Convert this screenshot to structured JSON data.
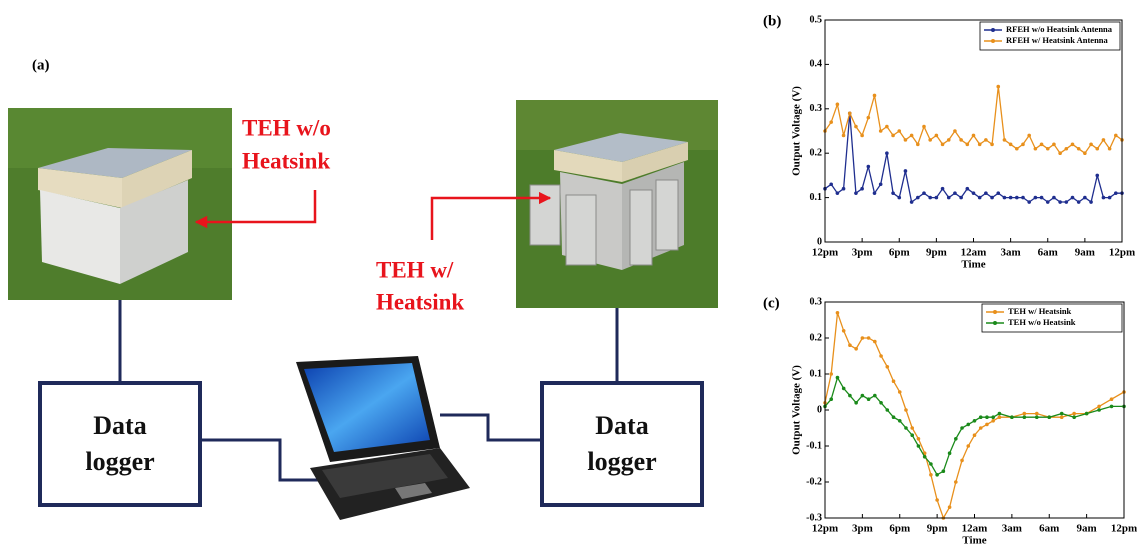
{
  "diagram": {
    "panel": "(a)",
    "teh_without": [
      "TEH w/o",
      "Heatsink"
    ],
    "teh_with": [
      "TEH w/",
      "Heatsink"
    ],
    "loggers": [
      [
        "Data",
        "logger"
      ],
      [
        "Data",
        "logger"
      ]
    ]
  },
  "chart_data": [
    {
      "type": "line",
      "panel": "(b)",
      "xlabel": "Time",
      "ylabel": "Output Voltage (V)",
      "legend": "upper right",
      "markers": true,
      "xlim": [
        0,
        24
      ],
      "xticks": [
        {
          "value": 0,
          "label": "12pm"
        },
        {
          "value": 3,
          "label": "3pm"
        },
        {
          "value": 6,
          "label": "6pm"
        },
        {
          "value": 9,
          "label": "9pm"
        },
        {
          "value": 12,
          "label": "12am"
        },
        {
          "value": 15,
          "label": "3am"
        },
        {
          "value": 18,
          "label": "6am"
        },
        {
          "value": 21,
          "label": "9am"
        },
        {
          "value": 24,
          "label": "12pm"
        }
      ],
      "ylim": [
        0,
        0.5
      ],
      "yticks": [
        0,
        0.1,
        0.2,
        0.3,
        0.4,
        0.5
      ],
      "x": [
        0,
        0.5,
        1,
        1.5,
        2,
        2.5,
        3,
        3.5,
        4,
        4.5,
        5,
        5.5,
        6,
        6.5,
        7,
        7.5,
        8,
        8.5,
        9,
        9.5,
        10,
        10.5,
        11,
        11.5,
        12,
        12.5,
        13,
        13.5,
        14,
        14.5,
        15,
        15.5,
        16,
        16.5,
        17,
        17.5,
        18,
        18.5,
        19,
        19.5,
        20,
        20.5,
        21,
        21.5,
        22,
        22.5,
        23,
        23.5,
        24
      ],
      "series": [
        {
          "name": "RFEH w/o Heatsink Antenna",
          "color": "#1f2e8f",
          "values": [
            0.12,
            0.13,
            0.11,
            0.12,
            0.29,
            0.11,
            0.12,
            0.17,
            0.11,
            0.13,
            0.2,
            0.11,
            0.1,
            0.16,
            0.09,
            0.1,
            0.11,
            0.1,
            0.1,
            0.12,
            0.1,
            0.11,
            0.1,
            0.12,
            0.11,
            0.1,
            0.11,
            0.1,
            0.11,
            0.1,
            0.1,
            0.1,
            0.1,
            0.09,
            0.1,
            0.1,
            0.09,
            0.1,
            0.09,
            0.09,
            0.1,
            0.09,
            0.1,
            0.09,
            0.15,
            0.1,
            0.1,
            0.11,
            0.11
          ]
        },
        {
          "name": "RFEH w/ Heatsink Antenna",
          "color": "#e8901c",
          "values": [
            0.25,
            0.27,
            0.31,
            0.24,
            0.29,
            0.26,
            0.24,
            0.28,
            0.33,
            0.25,
            0.26,
            0.24,
            0.25,
            0.23,
            0.24,
            0.22,
            0.26,
            0.23,
            0.24,
            0.22,
            0.23,
            0.25,
            0.23,
            0.22,
            0.24,
            0.22,
            0.23,
            0.22,
            0.35,
            0.23,
            0.22,
            0.21,
            0.22,
            0.24,
            0.21,
            0.22,
            0.21,
            0.22,
            0.2,
            0.21,
            0.22,
            0.21,
            0.2,
            0.22,
            0.21,
            0.23,
            0.21,
            0.24,
            0.23
          ]
        }
      ]
    },
    {
      "type": "line",
      "panel": "(c)",
      "xlabel": "Time",
      "ylabel": "Output Voltage (V)",
      "legend": "upper right",
      "markers": true,
      "xlim": [
        0,
        24
      ],
      "xticks": [
        {
          "value": 0,
          "label": "12pm"
        },
        {
          "value": 3,
          "label": "3pm"
        },
        {
          "value": 6,
          "label": "6pm"
        },
        {
          "value": 9,
          "label": "9pm"
        },
        {
          "value": 12,
          "label": "12am"
        },
        {
          "value": 15,
          "label": "3am"
        },
        {
          "value": 18,
          "label": "6am"
        },
        {
          "value": 21,
          "label": "9am"
        },
        {
          "value": 24,
          "label": "12pm"
        }
      ],
      "ylim": [
        -0.3,
        0.3
      ],
      "yticks": [
        -0.3,
        -0.2,
        -0.1,
        0,
        0.1,
        0.2,
        0.3
      ],
      "x": [
        0,
        0.5,
        1,
        1.5,
        2,
        2.5,
        3,
        3.5,
        4,
        4.5,
        5,
        5.5,
        6,
        6.5,
        7,
        7.5,
        8,
        8.5,
        9,
        9.5,
        10,
        10.5,
        11,
        11.5,
        12,
        12.5,
        13,
        13.5,
        14,
        15,
        16,
        17,
        18,
        19,
        20,
        21,
        22,
        23,
        24
      ],
      "series": [
        {
          "name": "TEH w/ Heatsink",
          "color": "#e8901c",
          "values": [
            0.02,
            0.1,
            0.27,
            0.22,
            0.18,
            0.17,
            0.2,
            0.2,
            0.19,
            0.15,
            0.12,
            0.08,
            0.05,
            0.0,
            -0.05,
            -0.08,
            -0.12,
            -0.18,
            -0.25,
            -0.3,
            -0.27,
            -0.2,
            -0.14,
            -0.1,
            -0.07,
            -0.05,
            -0.04,
            -0.03,
            -0.02,
            -0.02,
            -0.01,
            -0.01,
            -0.02,
            -0.02,
            -0.01,
            -0.01,
            0.01,
            0.03,
            0.05
          ]
        },
        {
          "name": "TEH w/o Heatsink",
          "color": "#1a8a1a",
          "values": [
            0.01,
            0.03,
            0.09,
            0.06,
            0.04,
            0.02,
            0.04,
            0.03,
            0.04,
            0.02,
            0.0,
            -0.02,
            -0.03,
            -0.05,
            -0.07,
            -0.1,
            -0.13,
            -0.15,
            -0.18,
            -0.17,
            -0.12,
            -0.08,
            -0.05,
            -0.04,
            -0.03,
            -0.02,
            -0.02,
            -0.02,
            -0.01,
            -0.02,
            -0.02,
            -0.02,
            -0.02,
            -0.01,
            -0.02,
            -0.01,
            0.0,
            0.01,
            0.01
          ]
        }
      ]
    }
  ]
}
